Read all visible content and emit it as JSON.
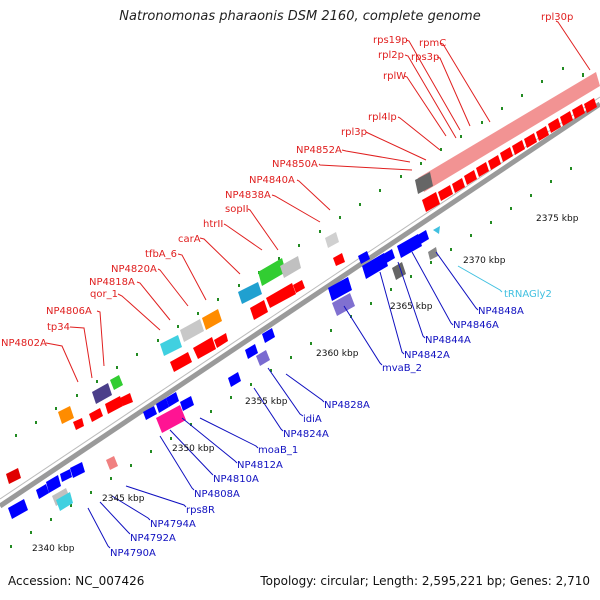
{
  "header": {
    "title": "Natronomonas pharaonis DSM 2160, complete genome"
  },
  "footer": {
    "accession": "Accession: NC_007426",
    "summary": "Topology: circular; Length: 2,595,221 bp; Genes: 2,710"
  },
  "colors": {
    "forward_label": "#e02020",
    "reverse_label": "#1010c0",
    "trna_label": "#40c0e0",
    "forward_gene": "#ff0000",
    "reverse_gene": "#0000ff",
    "backbone": "#888888",
    "tick": "#228b22"
  },
  "scale_labels": [
    "2340 kbp",
    "2345 kbp",
    "2350 kbp",
    "2355 kbp",
    "2360 kbp",
    "2365 kbp",
    "2370 kbp",
    "2375 kbp"
  ],
  "forward_labels": [
    "NP4802A",
    "tp34",
    "NP4806A",
    "qor_1",
    "NP4818A",
    "NP4820A",
    "tfbA_6",
    "carA",
    "htrII",
    "sopII",
    "NP4838A",
    "NP4840A",
    "NP4850A",
    "NP4852A",
    "rpl3p",
    "rpl4lp",
    "rplW",
    "rpl2p",
    "rps19p",
    "rps3p",
    "rpmC",
    "rpl30p"
  ],
  "reverse_labels": [
    "NP4790A",
    "NP4792A",
    "NP4794A",
    "rps8R",
    "NP4808A",
    "NP4810A",
    "NP4812A",
    "moaB_1",
    "NP4824A",
    "idiA",
    "NP4828A",
    "mvaB_2",
    "NP4842A",
    "NP4844A",
    "NP4846A",
    "NP4848A"
  ],
  "trna_labels": [
    "tRNAGly2"
  ]
}
